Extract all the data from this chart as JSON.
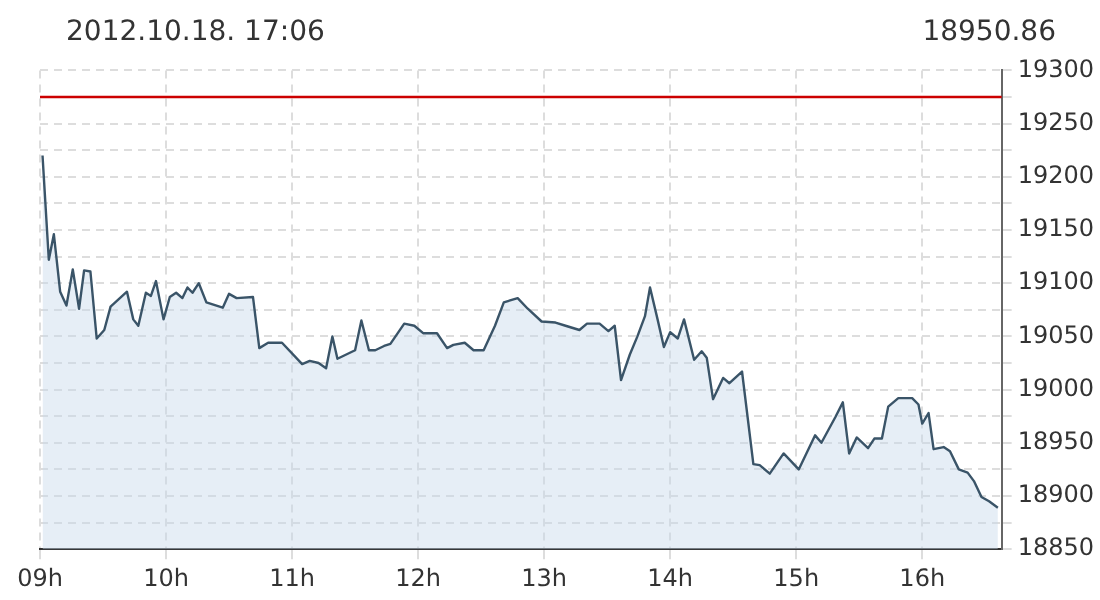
{
  "chart_data": {
    "type": "area",
    "title": "2012.10.18. 17:06",
    "subtitle": "18950.86",
    "x": [
      9.02,
      9.07,
      9.11,
      9.16,
      9.21,
      9.26,
      9.31,
      9.35,
      9.4,
      9.45,
      9.51,
      9.56,
      9.69,
      9.74,
      9.78,
      9.84,
      9.88,
      9.92,
      9.98,
      10.03,
      10.08,
      10.13,
      10.17,
      10.21,
      10.26,
      10.32,
      10.45,
      10.5,
      10.56,
      10.69,
      10.74,
      10.81,
      10.92,
      11.08,
      11.14,
      11.21,
      11.27,
      11.32,
      11.36,
      11.5,
      11.55,
      11.61,
      11.66,
      11.73,
      11.78,
      11.89,
      11.97,
      12.04,
      12.15,
      12.23,
      12.28,
      12.37,
      12.44,
      12.52,
      12.61,
      12.68,
      12.79,
      12.87,
      12.98,
      13.09,
      13.17,
      13.28,
      13.34,
      13.44,
      13.51,
      13.56,
      13.61,
      13.68,
      13.74,
      13.8,
      13.84,
      13.9,
      13.95,
      14.0,
      14.06,
      14.11,
      14.19,
      14.25,
      14.29,
      14.34,
      14.42,
      14.47,
      14.57,
      14.66,
      14.71,
      14.79,
      14.9,
      15.02,
      15.15,
      15.2,
      15.31,
      15.37,
      15.42,
      15.48,
      15.57,
      15.62,
      15.68,
      15.73,
      15.81,
      15.92,
      15.97,
      16.0,
      16.05,
      16.09,
      16.17,
      16.22,
      16.29,
      16.36,
      16.41,
      16.47,
      16.53,
      16.6
    ],
    "series": [
      {
        "color": "#3a5468",
        "values": [
          19220,
          19122,
          19146,
          19092,
          19079,
          19113,
          19076,
          19112,
          19111,
          19048,
          19056,
          19078,
          19092,
          19066,
          19060,
          19091,
          19088,
          19102,
          19066,
          19087,
          19091,
          19086,
          19096,
          19091,
          19100,
          19082,
          19077,
          19090,
          19086,
          19087,
          19039,
          19044,
          19044,
          19024,
          19027,
          19025,
          19020,
          19050,
          19029,
          19037,
          19065,
          19037,
          19037,
          19041,
          19043,
          19062,
          19060,
          19053,
          19053,
          19039,
          19042,
          19044,
          19037,
          19037,
          19060,
          19082,
          19086,
          19076,
          19064,
          19063,
          19060,
          19056,
          19062,
          19062,
          19055,
          19060,
          19009,
          19033,
          19050,
          19069,
          19096,
          19066,
          19040,
          19054,
          19048,
          19066,
          19028,
          19036,
          19030,
          18991,
          19011,
          19006,
          19017,
          18930,
          18929,
          18921,
          18940,
          18925,
          18957,
          18950,
          18974,
          18988,
          18940,
          18955,
          18945,
          18954,
          18954,
          18984,
          18992,
          18992,
          18986,
          18968,
          18978,
          18944,
          18946,
          18942,
          18925,
          18922,
          18914,
          18899,
          18895,
          18889
        ]
      }
    ],
    "xlim": [
      9,
      16.63
    ],
    "xticks": [
      {
        "value": 9,
        "label": "09h"
      },
      {
        "value": 10,
        "label": "10h"
      },
      {
        "value": 11,
        "label": "11h"
      },
      {
        "value": 12,
        "label": "12h"
      },
      {
        "value": 13,
        "label": "13h"
      },
      {
        "value": 14,
        "label": "14h"
      },
      {
        "value": 15,
        "label": "15h"
      },
      {
        "value": 16,
        "label": "16h"
      }
    ],
    "ylim": [
      18850,
      19300
    ],
    "yticks": [
      18850,
      {
        "value": 18875,
        "label": null
      },
      18900,
      {
        "value": 18925,
        "label": null
      },
      18950,
      {
        "value": 18975,
        "label": null
      },
      19000,
      {
        "value": 19025,
        "label": null
      },
      19050,
      {
        "value": 19075,
        "label": null
      },
      19100,
      {
        "value": 19125,
        "label": null
      },
      19150,
      {
        "value": 19175,
        "label": null
      },
      19200,
      {
        "value": 19225,
        "label": null
      },
      19250,
      {
        "value": 19275,
        "label": null
      },
      19300
    ],
    "ref_lines": [
      {
        "axis": "y",
        "value": 19275,
        "color": "#cc0000"
      }
    ],
    "grid": true,
    "marker": "none"
  }
}
